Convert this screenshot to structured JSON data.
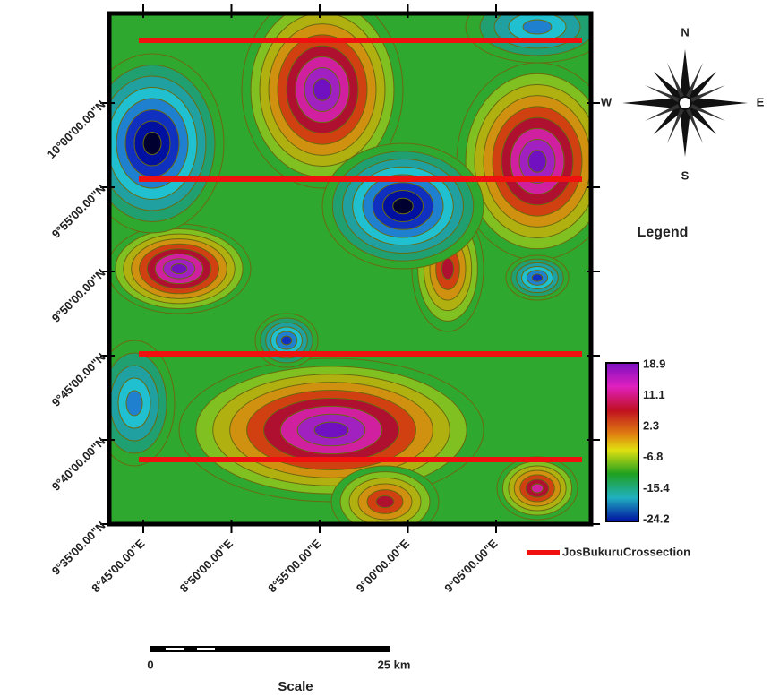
{
  "axes": {
    "latitude": [
      "10°00'00.00\"N",
      "9°55'00.00\"N",
      "9°50'00.00\"N",
      "9°45'00.00\"N",
      "9°40'00.00\"N",
      "9°35'00.00\"N"
    ],
    "longitude": [
      "8°45'00.00\"E",
      "8°50'00.00\"E",
      "8°55'00.00\"E",
      "9°00'00.00\"E",
      "9°05'00.00\"E"
    ]
  },
  "compass": {
    "north": "N",
    "south": "S",
    "east": "E",
    "west": "W"
  },
  "legend": {
    "title": "Legend",
    "colorbar": [
      "18.9",
      "11.1",
      "2.3",
      "-6.8",
      "-15.4",
      "-24.2"
    ],
    "line": "JosBukuruCrossection"
  },
  "scale": {
    "start": "0",
    "end": "25 km",
    "title": "Scale"
  }
}
